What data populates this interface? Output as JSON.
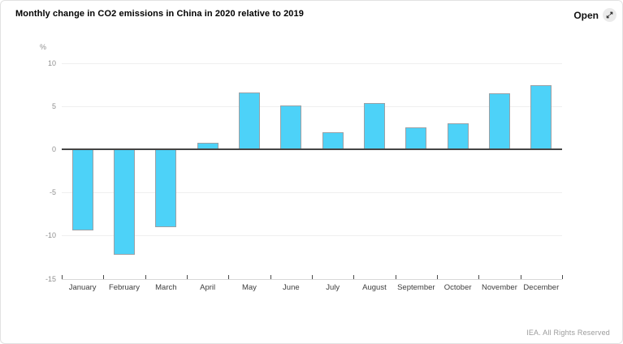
{
  "header": {
    "title": "Monthly change in CO2 emissions in China in 2020 relative to 2019",
    "open_label": "Open",
    "open_icon": "expand-diagonal-arrows"
  },
  "chart_data": {
    "type": "bar",
    "title": "Monthly change in CO2 emissions in China in 2020 relative to 2019",
    "xlabel": "",
    "ylabel": "%",
    "categories": [
      "January",
      "February",
      "March",
      "April",
      "May",
      "June",
      "July",
      "August",
      "September",
      "October",
      "November",
      "December"
    ],
    "values": [
      -9.4,
      -12.2,
      -9.0,
      0.8,
      6.6,
      5.1,
      2.0,
      5.4,
      2.5,
      3.0,
      6.5,
      7.4
    ],
    "ylim": [
      -15,
      10
    ],
    "yticks": [
      10,
      5,
      0,
      -5,
      -10,
      -15
    ],
    "grid": true,
    "legend": "none"
  },
  "colors": {
    "bar_fill": "#4dd2f8",
    "bar_border": "#9aa1a6",
    "zero_line": "#454545",
    "gridline": "#efefef",
    "axis_text": "#8f8f8f",
    "category_text": "#3d3d3d"
  },
  "footer": {
    "credit": "IEA. All Rights Reserved"
  }
}
